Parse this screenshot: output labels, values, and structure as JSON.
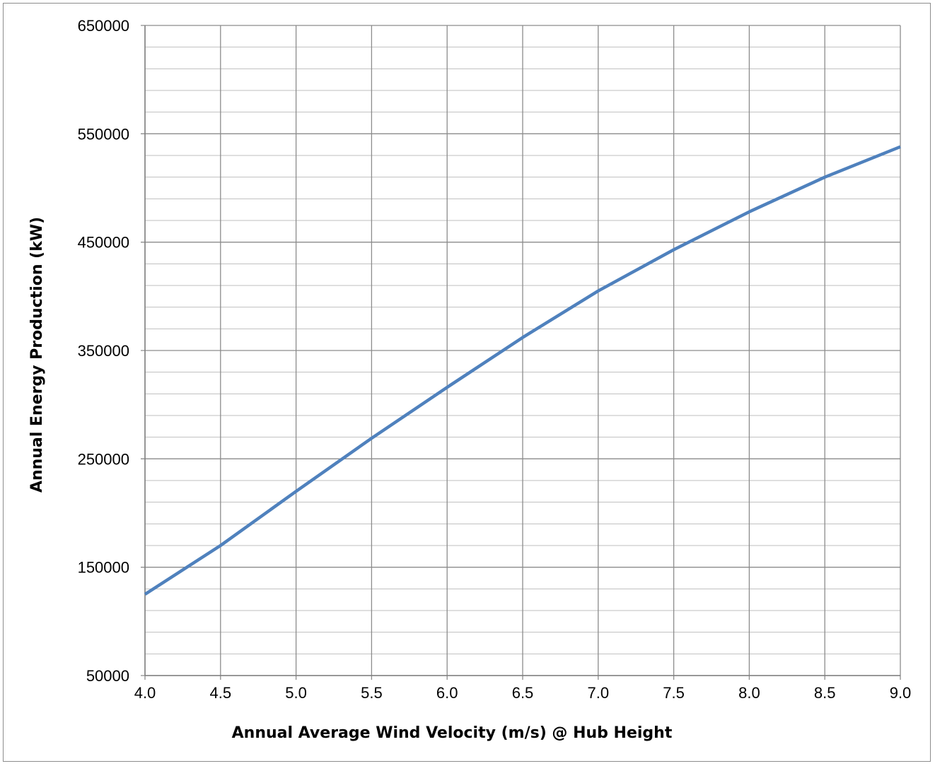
{
  "chart_data": {
    "type": "line",
    "title": "",
    "xlabel": "Annual Average Wind Velocity (m/s) @ Hub Height",
    "ylabel": "Annual Energy Production (kW)",
    "xlim": [
      4.0,
      9.0
    ],
    "ylim": [
      50000,
      650000
    ],
    "x_ticks": [
      "4.0",
      "4.5",
      "5.0",
      "5.5",
      "6.0",
      "6.5",
      "7.0",
      "7.5",
      "8.0",
      "8.5",
      "9.0"
    ],
    "y_ticks": [
      "650000",
      "550000",
      "450000",
      "350000",
      "250000",
      "150000",
      "50000"
    ],
    "y_major_step": 100000,
    "y_minor_step": 20000,
    "grid": true,
    "legend": "none",
    "series": [
      {
        "color": "#4f81bd",
        "x": [
          4.0,
          4.5,
          5.0,
          5.5,
          6.0,
          6.5,
          7.0,
          7.5,
          8.0,
          8.5,
          9.0
        ],
        "y": [
          125000,
          170000,
          220000,
          269000,
          316000,
          362000,
          405000,
          443000,
          478000,
          510000,
          538000
        ]
      }
    ]
  }
}
